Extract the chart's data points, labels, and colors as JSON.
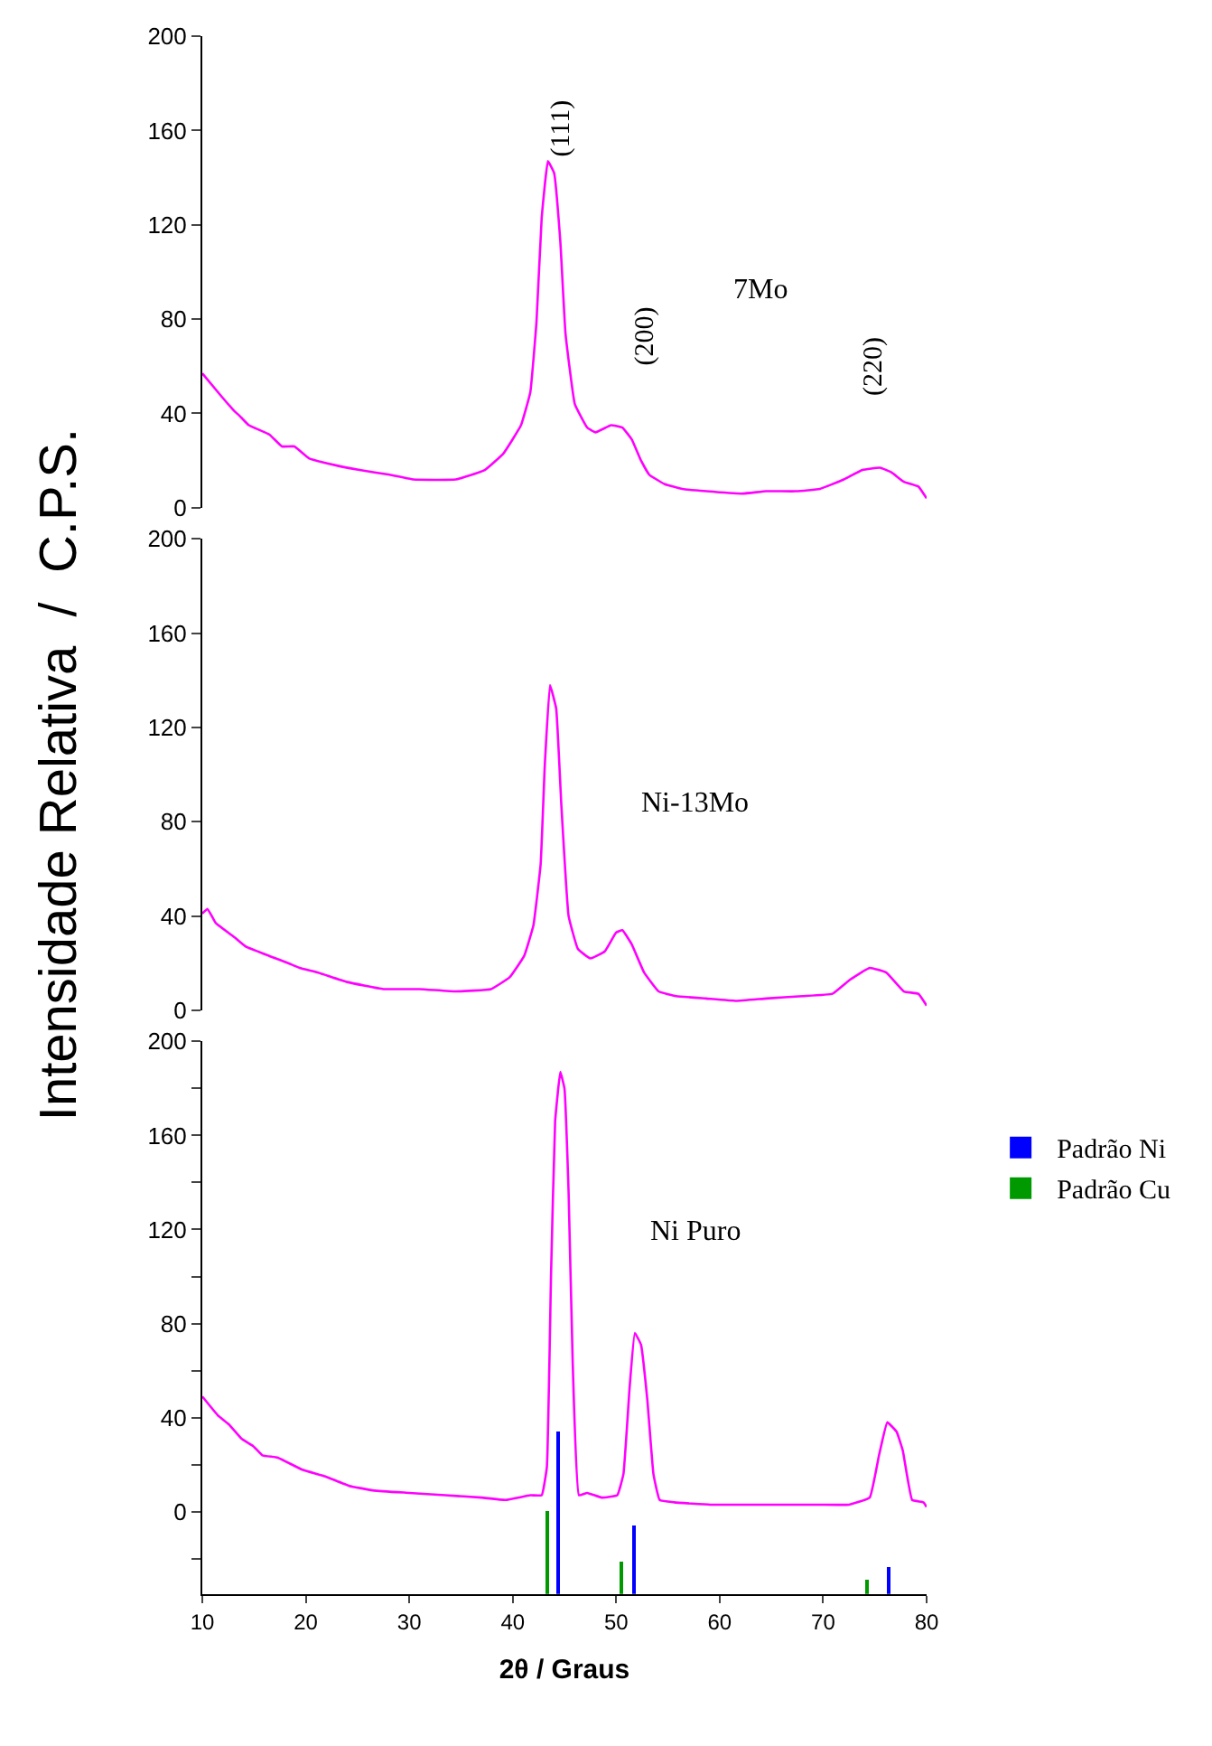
{
  "chart_data": [
    {
      "type": "line",
      "xlim": [
        10,
        80
      ],
      "ylim": [
        0,
        200
      ],
      "yticks": [
        0,
        40,
        80,
        120,
        160,
        200
      ],
      "tick_labels": "y",
      "annotations": [
        "(111)",
        "(200)",
        "(220)",
        "7Mo"
      ],
      "series": [
        {
          "color": "#ff00ff",
          "x": [
            10,
            11.9,
            13.1,
            13.6,
            14.5,
            16.5,
            17.7,
            18.9,
            20.3,
            22.9,
            25.2,
            28.1,
            30.4,
            34.5,
            37.3,
            39.1,
            40.8,
            41.7,
            42.3,
            42.8,
            43.4,
            44,
            44.6,
            45.1,
            46,
            47.2,
            48,
            49.5,
            50.6,
            51.5,
            52.4,
            53.2,
            54.7,
            56.4,
            58.7,
            62.2,
            64.5,
            67.4,
            69.7,
            72,
            73.8,
            75.5,
            76.6,
            77.8,
            79.2,
            80
          ],
          "values": [
            57,
            47,
            41,
            39,
            35,
            31,
            26,
            26,
            21,
            18,
            16,
            14,
            12,
            12,
            16,
            23,
            35,
            49,
            79,
            123,
            147,
            142,
            113,
            74,
            44,
            34,
            32,
            35,
            34,
            29,
            20,
            14,
            10,
            8,
            7,
            6,
            7,
            7,
            8,
            12,
            16,
            17,
            15,
            11,
            9,
            4
          ]
        }
      ]
    },
    {
      "type": "line",
      "xlim": [
        10,
        80
      ],
      "ylim": [
        0,
        200
      ],
      "yticks": [
        0,
        40,
        80,
        120,
        160,
        200
      ],
      "tick_labels": "y",
      "ylabel": "Intensidade Relativa  /  C.P.S.",
      "annotations": [
        "Ni-13Mo"
      ],
      "series": [
        {
          "color": "#ff00ff",
          "x": [
            10,
            10.5,
            11.3,
            13.1,
            14.2,
            16.5,
            18.3,
            19.4,
            21.2,
            24,
            27.5,
            31,
            34.5,
            37.9,
            39.7,
            41.1,
            42,
            42.7,
            43.1,
            43.6,
            44.2,
            44.7,
            45.4,
            46.3,
            47.5,
            48.9,
            50,
            50.6,
            51.5,
            52.7,
            54.1,
            55.8,
            58.7,
            61.6,
            64.5,
            68,
            70.9,
            72.6,
            74.5,
            76.1,
            77.8,
            79.2,
            80
          ],
          "values": [
            41,
            43,
            37,
            31,
            27,
            23,
            20,
            18,
            16,
            12,
            9,
            9,
            8,
            9,
            14,
            23,
            36,
            62,
            104,
            138,
            128,
            87,
            40,
            26,
            22,
            25,
            33,
            34,
            28,
            16,
            8,
            6,
            5,
            4,
            5,
            6,
            7,
            13,
            18,
            16,
            8,
            7,
            2
          ]
        }
      ]
    },
    {
      "type": "line",
      "xlim": [
        10,
        80
      ],
      "ylim": [
        -35,
        200
      ],
      "yticks": [
        {
          "value": -20,
          "label": null
        },
        0,
        {
          "value": 20,
          "label": null
        },
        40,
        {
          "value": 60,
          "label": null
        },
        80,
        {
          "value": 100,
          "label": null
        },
        120,
        {
          "value": 140,
          "label": null
        },
        160,
        {
          "value": 180,
          "label": null
        },
        200
      ],
      "xticks": [
        10,
        20,
        30,
        40,
        50,
        60,
        70,
        80
      ],
      "xlabel": "2θ / Graus",
      "legend": "right",
      "annotations": [
        "Ni Puro"
      ],
      "series": [
        {
          "color": "#ff00ff",
          "x": [
            10,
            11.5,
            12.6,
            13.8,
            14.9,
            15.8,
            17.3,
            19.6,
            21.9,
            24.2,
            26.6,
            30,
            33.5,
            37,
            39.3,
            41.7,
            42.8,
            43.3,
            43.7,
            44.1,
            44.6,
            45,
            45.4,
            45.8,
            46.4,
            47.2,
            48.6,
            50.1,
            50.7,
            51.3,
            51.8,
            52.4,
            53,
            53.6,
            54.2,
            55.6,
            59.1,
            64.9,
            69.6,
            72.5,
            74.5,
            75.4,
            76.2,
            77.1,
            77.7,
            78.6,
            79.7,
            80
          ],
          "values": [
            49,
            41,
            37,
            31,
            28,
            24,
            23,
            18,
            15,
            11,
            9,
            8,
            7,
            6,
            5,
            7,
            7,
            19,
            100,
            166,
            187,
            180,
            136,
            63,
            7,
            8,
            6,
            7,
            16,
            53,
            76,
            71,
            48,
            16,
            5,
            4,
            3,
            3,
            3,
            3,
            6,
            24,
            38,
            34,
            26,
            5,
            4,
            2
          ]
        },
        {
          "type": "bar",
          "name": "Padrão Ni",
          "color": "#0000ff",
          "x": [
            44.4,
            51.8,
            76.3
          ],
          "base": [
            -35,
            -35,
            -35
          ],
          "values": [
            69,
            29,
            11
          ]
        },
        {
          "type": "bar",
          "name": "Padrão Cu",
          "color": "#009900",
          "x": [
            43.3,
            50.5,
            74.2
          ],
          "base": [
            -35,
            -35,
            -35
          ],
          "values": [
            35,
            14,
            6
          ]
        }
      ]
    }
  ]
}
